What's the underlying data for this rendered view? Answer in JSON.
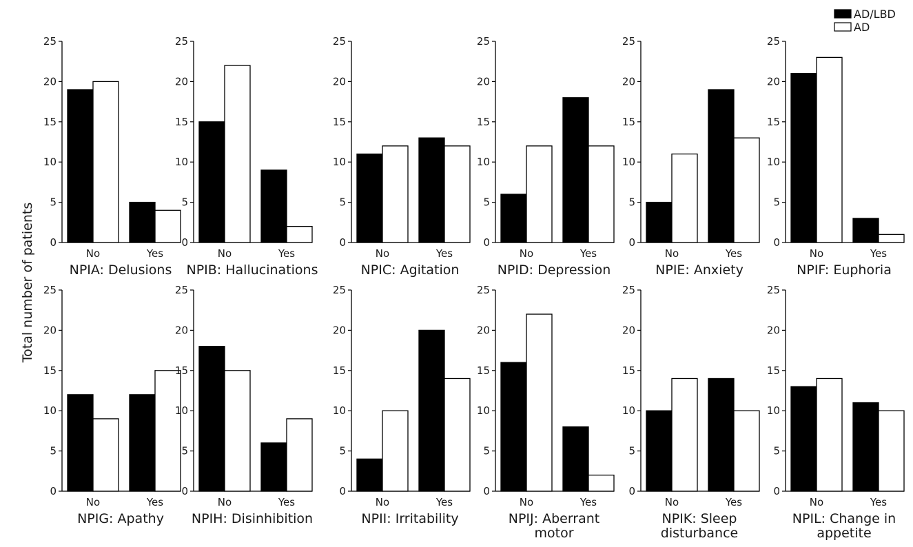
{
  "chart_data": {
    "type": "bar",
    "ylabel": "Total number of patients",
    "ylim": [
      0,
      25
    ],
    "yticks": [
      "0",
      "5",
      "10",
      "15",
      "20",
      "25"
    ],
    "categories": [
      "No",
      "Yes"
    ],
    "legend": {
      "placement": "top-right",
      "entries": [
        {
          "name": "AD/LBD",
          "color": "#000000"
        },
        {
          "name": "AD",
          "color": "#ffffff"
        }
      ]
    },
    "panels": [
      {
        "title": [
          "NPIA: Delusions"
        ],
        "series": [
          {
            "name": "AD/LBD",
            "values": [
              19,
              5
            ]
          },
          {
            "name": "AD",
            "values": [
              20,
              4
            ]
          }
        ]
      },
      {
        "title": [
          "NPIB: Hallucinations"
        ],
        "series": [
          {
            "name": "AD/LBD",
            "values": [
              15,
              9
            ]
          },
          {
            "name": "AD",
            "values": [
              22,
              2
            ]
          }
        ]
      },
      {
        "title": [
          "NPIC: Agitation"
        ],
        "series": [
          {
            "name": "AD/LBD",
            "values": [
              11,
              13
            ]
          },
          {
            "name": "AD",
            "values": [
              12,
              12
            ]
          }
        ]
      },
      {
        "title": [
          "NPID: Depression"
        ],
        "series": [
          {
            "name": "AD/LBD",
            "values": [
              6,
              18
            ]
          },
          {
            "name": "AD",
            "values": [
              12,
              12
            ]
          }
        ]
      },
      {
        "title": [
          "NPIE: Anxiety"
        ],
        "series": [
          {
            "name": "AD/LBD",
            "values": [
              5,
              19
            ]
          },
          {
            "name": "AD",
            "values": [
              11,
              13
            ]
          }
        ]
      },
      {
        "title": [
          "NPIF: Euphoria"
        ],
        "series": [
          {
            "name": "AD/LBD",
            "values": [
              21,
              3
            ]
          },
          {
            "name": "AD",
            "values": [
              23,
              1
            ]
          }
        ]
      },
      {
        "title": [
          "NPIG: Apathy"
        ],
        "series": [
          {
            "name": "AD/LBD",
            "values": [
              12,
              12
            ]
          },
          {
            "name": "AD",
            "values": [
              9,
              15
            ]
          }
        ]
      },
      {
        "title": [
          "NPIH: Disinhibition"
        ],
        "series": [
          {
            "name": "AD/LBD",
            "values": [
              18,
              6
            ]
          },
          {
            "name": "AD",
            "values": [
              15,
              9
            ]
          }
        ]
      },
      {
        "title": [
          "NPII: Irritability"
        ],
        "series": [
          {
            "name": "AD/LBD",
            "values": [
              4,
              20
            ]
          },
          {
            "name": "AD",
            "values": [
              10,
              14
            ]
          }
        ]
      },
      {
        "title": [
          "NPIJ: Aberrant",
          "motor"
        ],
        "series": [
          {
            "name": "AD/LBD",
            "values": [
              16,
              8
            ]
          },
          {
            "name": "AD",
            "values": [
              22,
              2
            ]
          }
        ]
      },
      {
        "title": [
          "NPIK: Sleep",
          "disturbance"
        ],
        "series": [
          {
            "name": "AD/LBD",
            "values": [
              10,
              14
            ]
          },
          {
            "name": "AD",
            "values": [
              14,
              10
            ]
          }
        ]
      },
      {
        "title": [
          "NPIL: Change in",
          "appetite"
        ],
        "series": [
          {
            "name": "AD/LBD",
            "values": [
              13,
              11
            ]
          },
          {
            "name": "AD",
            "values": [
              14,
              10
            ]
          }
        ]
      }
    ]
  }
}
